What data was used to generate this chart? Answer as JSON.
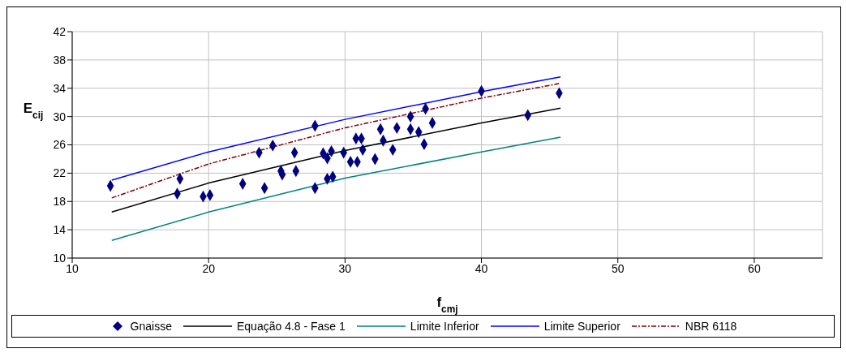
{
  "chart_data": {
    "type": "scatter",
    "xlabel": "f$_{cmj}$",
    "ylabel": "E$_{cij}$",
    "xlim": [
      10,
      65
    ],
    "xticks": [
      10,
      20,
      30,
      40,
      50,
      60
    ],
    "ylim": [
      10,
      42
    ],
    "yticks": [
      10,
      14,
      18,
      22,
      26,
      30,
      34,
      38,
      42
    ],
    "grid": true,
    "legend": "bottom",
    "series": [
      {
        "name": "Gnaisse",
        "marker": "diamond",
        "color": "#000080",
        "x": [
          12.8,
          17.9,
          17.7,
          19.6,
          20.1,
          22.5,
          24.1,
          23.7,
          24.7,
          25.3,
          25.4,
          26.3,
          26.4,
          27.8,
          27.8,
          28.4,
          28.7,
          29.0,
          28.7,
          29.1,
          29.9,
          30.4,
          30.9,
          30.8,
          31.2,
          31.3,
          32.2,
          32.6,
          32.8,
          33.5,
          33.8,
          34.8,
          34.8,
          35.4,
          35.8,
          35.9,
          36.4,
          40.0,
          43.4,
          45.7
        ],
        "values": [
          20.2,
          21.2,
          19.1,
          18.7,
          18.9,
          20.5,
          19.9,
          24.9,
          25.9,
          22.3,
          21.8,
          24.9,
          22.3,
          28.7,
          19.9,
          24.8,
          24.1,
          25.1,
          21.2,
          21.5,
          24.9,
          23.6,
          23.6,
          26.9,
          26.9,
          25.3,
          24.0,
          28.2,
          26.6,
          25.3,
          28.4,
          30.0,
          28.2,
          27.8,
          26.1,
          31.1,
          29.1,
          33.6,
          30.2,
          33.3
        ]
      },
      {
        "name": "Equação 4.8 - Fase 1",
        "type": "line",
        "marker": "none",
        "line_style": "solid",
        "color": "#000000",
        "x": [
          12.9,
          20,
          30,
          40,
          45.8
        ],
        "values": [
          16.5,
          20.6,
          25.2,
          29.1,
          31.2
        ]
      },
      {
        "name": "Limite Inferior",
        "type": "line",
        "marker": "none",
        "line_style": "solid",
        "color": "#008080",
        "x": [
          12.9,
          20,
          30,
          40,
          45.8
        ],
        "values": [
          12.5,
          16.5,
          21.3,
          25.0,
          27.1
        ]
      },
      {
        "name": "Limite Superior",
        "type": "line",
        "marker": "none",
        "line_style": "solid",
        "color": "#0000ff",
        "x": [
          12.9,
          20,
          30,
          40,
          45.8
        ],
        "values": [
          21.0,
          25.0,
          29.6,
          33.5,
          35.6
        ]
      },
      {
        "name": "NBR 6118",
        "type": "line",
        "marker": "none",
        "line_style": "dashed",
        "color": "#800000",
        "x": [
          12.9,
          20,
          30,
          40,
          45.8
        ],
        "values": [
          18.5,
          23.3,
          28.4,
          32.6,
          34.7
        ]
      }
    ]
  }
}
